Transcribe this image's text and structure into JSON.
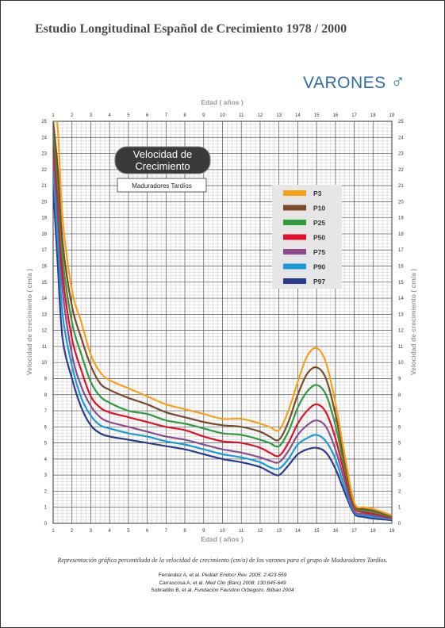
{
  "page": {
    "title": "Estudio Longitudinal Español de Crecimiento  1978 / 2000",
    "gender": "VARONES",
    "gender_icon": "male-symbol-icon",
    "caption": "Representación gráfica percentilada de la velocidad de crecimiento (cm/a) de los varones para el grupo de Maduradores Tardíos.",
    "references": [
      {
        "authors": "Ferrández A, et al.",
        "source": "Pediatr Endocr Rev. 2005; 2:423-559"
      },
      {
        "authors": "Carrascosa A, et al.",
        "source": "Med Clin (Barc) 2008; 130:645-649"
      },
      {
        "authors": "Sobradillo B, et al.",
        "source": "Fundación Faustino Orbegozo. Bilbao 2004"
      }
    ]
  },
  "chart_data": {
    "type": "line",
    "title": "Velocidad de Crecimiento",
    "subtitle": "Maduradores Tardíos",
    "xlabel": "Edad ( años )",
    "ylabel": "Velocidad de crecimiento ( cm/a )",
    "xlim": [
      1,
      19
    ],
    "ylim": [
      0,
      25
    ],
    "x_ticks": [
      1,
      2,
      3,
      4,
      5,
      6,
      7,
      8,
      9,
      10,
      11,
      12,
      13,
      14,
      15,
      16,
      17,
      18,
      19
    ],
    "y_ticks": [
      0,
      1,
      2,
      3,
      4,
      5,
      6,
      7,
      8,
      9,
      10,
      11,
      12,
      13,
      14,
      15,
      16,
      17,
      18,
      19,
      20,
      21,
      22,
      23,
      24,
      25
    ],
    "grid": true,
    "legend_position": "top-right",
    "x": [
      1,
      1.25,
      1.5,
      2,
      2.5,
      3,
      3.5,
      4,
      5,
      6,
      7,
      8,
      9,
      10,
      11,
      12,
      12.5,
      13,
      13.5,
      14,
      14.5,
      15,
      15.5,
      16,
      16.5,
      17,
      17.5,
      18,
      19
    ],
    "series": [
      {
        "name": "P3",
        "color": "#f7a11a",
        "values": [
          26,
          24.5,
          19,
          14.5,
          12.5,
          10.5,
          9.4,
          8.9,
          8.4,
          7.9,
          7.4,
          7.1,
          6.8,
          6.5,
          6.5,
          6.2,
          6.0,
          5.8,
          7.0,
          8.8,
          10.4,
          10.9,
          10.0,
          7.5,
          4.2,
          1.3,
          1.0,
          0.9,
          0.5
        ]
      },
      {
        "name": "P10",
        "color": "#7a4a2a",
        "values": [
          25,
          22,
          17.5,
          13.5,
          11.5,
          9.8,
          8.7,
          8.3,
          7.8,
          7.4,
          6.9,
          6.6,
          6.3,
          6.1,
          6.0,
          5.7,
          5.4,
          5.2,
          6.3,
          8.0,
          9.3,
          9.7,
          9.0,
          6.8,
          3.8,
          1.2,
          0.9,
          0.8,
          0.45
        ]
      },
      {
        "name": "P25",
        "color": "#2e9b3d",
        "values": [
          24.5,
          21,
          16.5,
          12.5,
          10.5,
          8.8,
          7.9,
          7.5,
          7.0,
          6.8,
          6.4,
          6.2,
          5.9,
          5.6,
          5.5,
          5.2,
          5.0,
          4.8,
          5.7,
          7.2,
          8.2,
          8.6,
          8.0,
          6.1,
          3.4,
          1.1,
          0.8,
          0.7,
          0.4
        ]
      },
      {
        "name": "P50",
        "color": "#e0102a",
        "values": [
          24,
          20,
          15.5,
          11.5,
          9.5,
          7.9,
          7.2,
          6.9,
          6.6,
          6.3,
          6.0,
          5.8,
          5.4,
          5.1,
          5.0,
          4.7,
          4.4,
          4.2,
          5.0,
          6.2,
          7.0,
          7.4,
          6.9,
          5.3,
          3.0,
          1.0,
          0.7,
          0.6,
          0.35
        ]
      },
      {
        "name": "P75",
        "color": "#8b4d8e",
        "values": [
          23,
          19,
          14.5,
          10.5,
          8.5,
          7.3,
          6.6,
          6.3,
          6.0,
          5.7,
          5.4,
          5.2,
          4.9,
          4.6,
          4.4,
          4.1,
          3.9,
          3.8,
          4.5,
          5.5,
          6.1,
          6.4,
          6.0,
          4.6,
          2.6,
          0.8,
          0.6,
          0.5,
          0.3
        ]
      },
      {
        "name": "P90",
        "color": "#1a9ad6",
        "values": [
          22,
          17.5,
          13,
          9.8,
          7.8,
          6.7,
          6.1,
          5.9,
          5.6,
          5.4,
          5.1,
          4.9,
          4.6,
          4.3,
          4.1,
          3.8,
          3.5,
          3.4,
          4.0,
          4.9,
          5.3,
          5.5,
          5.1,
          4.0,
          2.2,
          0.7,
          0.5,
          0.4,
          0.25
        ]
      },
      {
        "name": "P97",
        "color": "#2b3a8c",
        "values": [
          21,
          16,
          11.5,
          9.0,
          7.2,
          6.1,
          5.6,
          5.4,
          5.2,
          5.0,
          4.8,
          4.6,
          4.3,
          4.0,
          3.8,
          3.5,
          3.2,
          3.0,
          3.6,
          4.3,
          4.6,
          4.7,
          4.4,
          3.4,
          1.9,
          0.6,
          0.4,
          0.3,
          0.2
        ]
      }
    ]
  }
}
